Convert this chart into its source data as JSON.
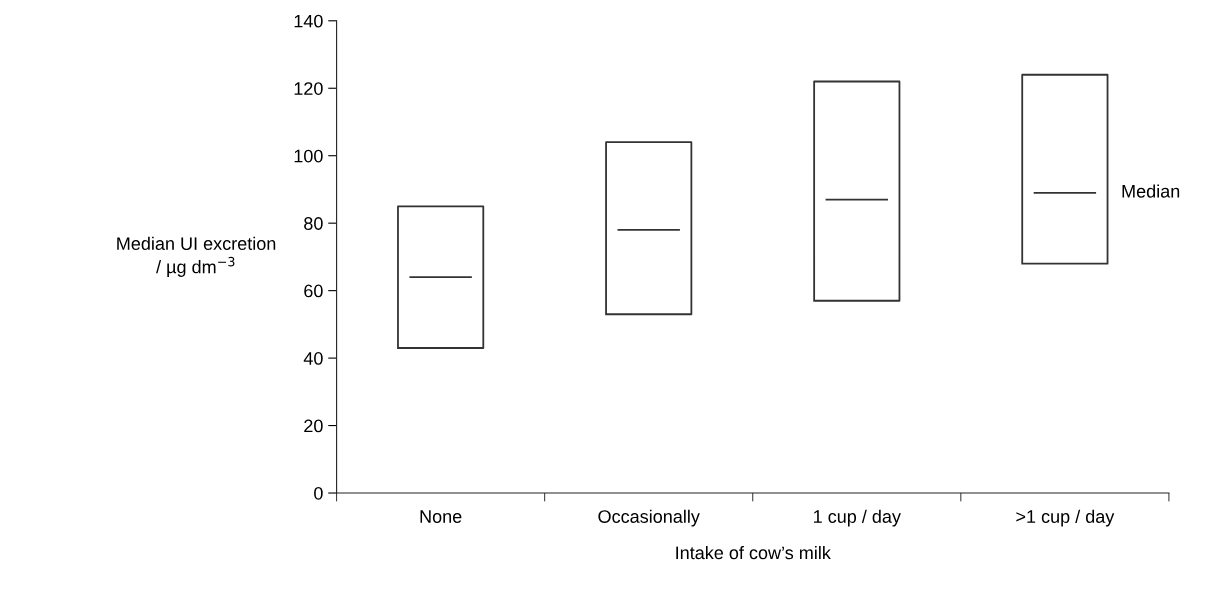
{
  "chart_data": {
    "type": "box",
    "xlabel": "Intake of cow’s milk",
    "ylabel": "Median UI excretion\n/ µg dm$^{−3}$",
    "categories": [
      "None",
      "Occasionally",
      "1 cup / day",
      ">1 cup / day"
    ],
    "boxes": [
      {
        "low": 43,
        "q1": 43,
        "median": 64,
        "q3": 85,
        "high": 85
      },
      {
        "low": 53,
        "q1": 53,
        "median": 78,
        "q3": 104,
        "high": 104
      },
      {
        "low": 57,
        "q1": 57,
        "median": 87,
        "q3": 122,
        "high": 122
      },
      {
        "low": 68,
        "q1": 68,
        "median": 89,
        "q3": 124,
        "high": 124
      }
    ],
    "color": "#333333",
    "ylim": [
      0,
      140
    ],
    "yticks": [
      0,
      20,
      40,
      60,
      80,
      100,
      120,
      140
    ],
    "annotations": [
      "Median"
    ],
    "grid": false,
    "legend": false
  }
}
